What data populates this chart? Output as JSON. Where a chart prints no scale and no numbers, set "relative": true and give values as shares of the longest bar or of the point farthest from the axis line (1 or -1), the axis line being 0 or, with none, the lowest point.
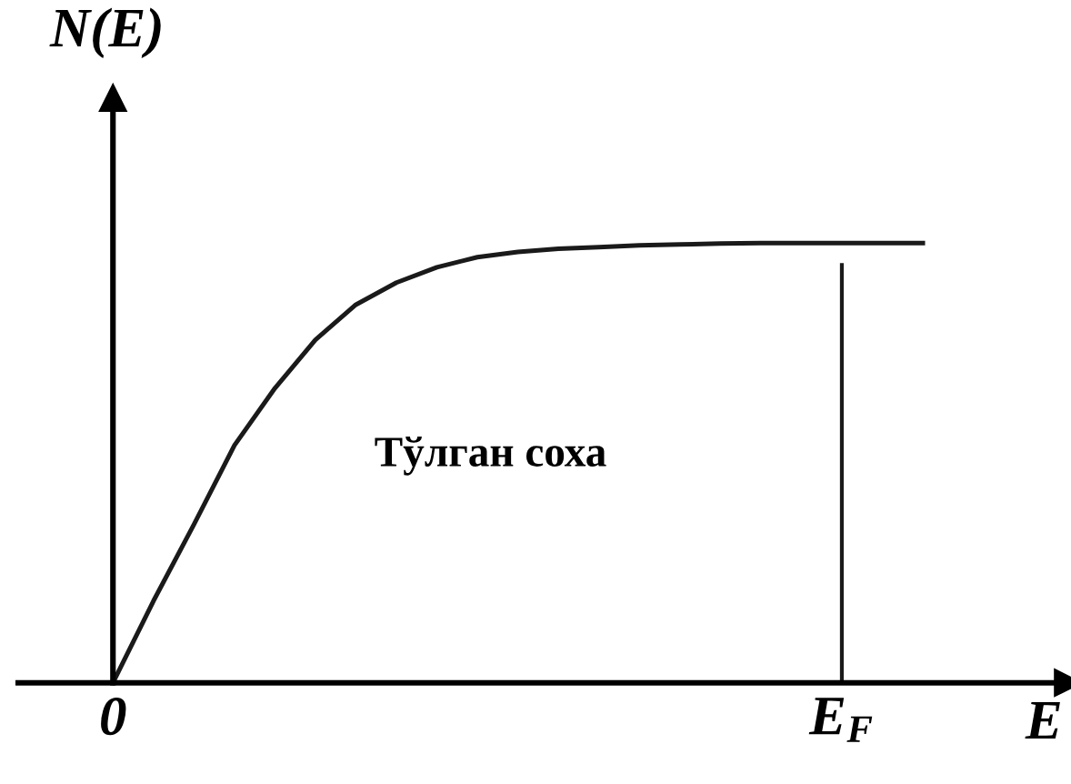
{
  "chart_data": {
    "type": "line",
    "relative": true,
    "xlabel": "E",
    "ylabel": "N(E)",
    "categories": [
      "0",
      null,
      null,
      null,
      null,
      null,
      null,
      null,
      null,
      null,
      null,
      null,
      null,
      null,
      null,
      null,
      null,
      null,
      "E$_{F}$",
      null,
      null
    ],
    "series": [
      {
        "color": "#1a1a1a",
        "values": [
          0,
          0.186,
          0.36,
          0.54,
          0.67,
          0.78,
          0.86,
          0.91,
          0.945,
          0.968,
          0.98,
          0.987,
          0.991,
          0.995,
          0.997,
          0.999,
          1.0,
          1.0,
          1.0,
          1.0,
          1.0
        ]
      }
    ],
    "ref_lines": [
      {
        "axis": "x",
        "value": "E$_{F}$",
        "label": null,
        "color": "#1a1a1a",
        "line_style": "solid"
      }
    ],
    "annotations": [
      "Тўлган соха"
    ],
    "marker": "none",
    "line_style": "solid"
  }
}
